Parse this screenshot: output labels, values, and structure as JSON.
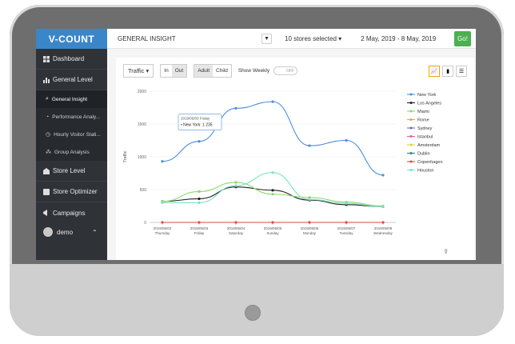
{
  "brand": "V-COUNT",
  "sidebar": {
    "items": [
      {
        "label": "Dashboard",
        "icon": "dashboard-icon"
      },
      {
        "label": "General Level",
        "icon": "bar-chart-icon"
      }
    ],
    "sub_items": [
      {
        "label": "General Insight",
        "icon": "search-icon",
        "active": true
      },
      {
        "label": "Performance Analy...",
        "icon": "gauge-icon"
      },
      {
        "label": "Hourly Visitor Stati...",
        "icon": "clock-icon"
      },
      {
        "label": "Group Analysis",
        "icon": "group-icon"
      }
    ],
    "items2": [
      {
        "label": "Store Level",
        "icon": "store-icon"
      },
      {
        "label": "Store Optimizer",
        "icon": "optimizer-icon"
      },
      {
        "label": "Campaigns",
        "icon": "megaphone-icon"
      }
    ],
    "user": "demo"
  },
  "topbar": {
    "title": "GENERAL INSIGHT",
    "stores": "10 stores selected",
    "date_range": "2 May, 2019 - 8 May, 2019",
    "go_label": "Go!"
  },
  "controls": {
    "metric": "Traffic",
    "in_label": "In",
    "out_label": "Out",
    "adult_label": "Adult",
    "child_label": "Child",
    "show_weekly_label": "Show Weekly",
    "toggle_state": "OFF"
  },
  "chart_data": {
    "type": "line",
    "ylabel": "Traffic",
    "ylim": [
      0,
      2000
    ],
    "yticks": [
      0,
      500,
      1000,
      1500,
      2000
    ],
    "categories": [
      {
        "date": "2019/05/02",
        "day": "Thursday"
      },
      {
        "date": "2019/05/03",
        "day": "Friday"
      },
      {
        "date": "2019/05/04",
        "day": "Saturday"
      },
      {
        "date": "2019/05/05",
        "day": "Sunday"
      },
      {
        "date": "2019/05/06",
        "day": "Monday"
      },
      {
        "date": "2019/05/07",
        "day": "Tuesday"
      },
      {
        "date": "2019/05/08",
        "day": "Wednesday"
      }
    ],
    "series": [
      {
        "name": "New York",
        "color": "#4a90d9",
        "values": [
          930,
          1235,
          1740,
          1840,
          1170,
          1250,
          720
        ]
      },
      {
        "name": "Los Angeles",
        "color": "#222222",
        "values": [
          320,
          360,
          540,
          490,
          340,
          270,
          240
        ]
      },
      {
        "name": "Miami",
        "color": "#8cd96c",
        "values": [
          320,
          470,
          610,
          430,
          380,
          310,
          250
        ]
      },
      {
        "name": "Rome",
        "color": "#e8a060",
        "values": [
          null,
          null,
          null,
          null,
          null,
          null,
          null
        ]
      },
      {
        "name": "Sydney",
        "color": "#6a6ad8",
        "values": [
          null,
          null,
          null,
          null,
          null,
          null,
          null
        ]
      },
      {
        "name": "Istanbul",
        "color": "#e06090",
        "values": [
          null,
          null,
          null,
          null,
          null,
          null,
          null
        ]
      },
      {
        "name": "Amsterdam",
        "color": "#e0d040",
        "values": [
          null,
          null,
          null,
          null,
          null,
          null,
          null
        ]
      },
      {
        "name": "Dublin",
        "color": "#2a8a7a",
        "values": [
          null,
          null,
          null,
          null,
          null,
          null,
          null
        ]
      },
      {
        "name": "Copenhagen",
        "color": "#d94a4a",
        "values": [
          0,
          0,
          0,
          0,
          0,
          0,
          0
        ]
      },
      {
        "name": "Houston",
        "color": "#7ee0c8",
        "values": [
          300,
          300,
          560,
          760,
          350,
          290,
          240
        ]
      }
    ],
    "tooltip": {
      "header": "2019/05/03 Friday",
      "series": "New York",
      "value": "1 235"
    }
  }
}
